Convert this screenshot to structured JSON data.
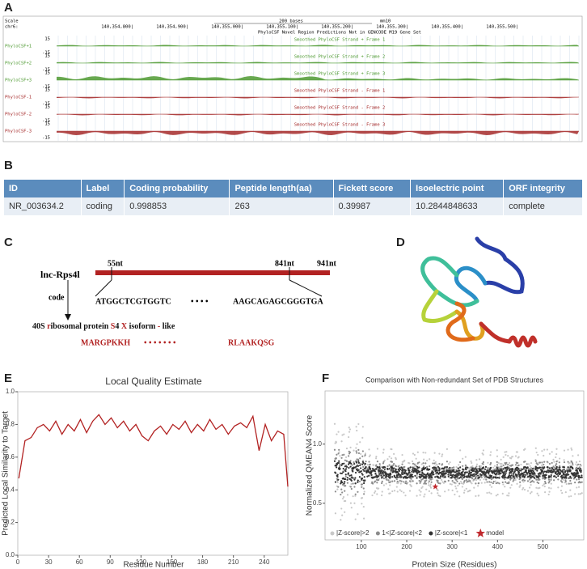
{
  "panel_labels": [
    "A",
    "B",
    "C",
    "D",
    "E",
    "F"
  ],
  "browser": {
    "scale": "Scale",
    "chrom": "chr6:",
    "scale_bar": "200 bases",
    "assembly": "mm10",
    "positions": [
      "140,354,800|",
      "140,354,900|",
      "140,355,000|",
      "140,355,100|",
      "140,355,200|",
      "140,355,300|",
      "140,355,400|",
      "140,355,500|"
    ],
    "region_track": "PhyloCSF Novel Region Predictions Not in GENCODE M19 Gene Set",
    "tracks": [
      {
        "name": "PhyloCSF+1",
        "title": "Smoothed PhyloCSF Strand + Frame 1",
        "top": "15",
        "bottom": "-15"
      },
      {
        "name": "PhyloCSF+2",
        "title": "Smoothed PhyloCSF Strand + Frame 2",
        "top": "15",
        "bottom": "-15"
      },
      {
        "name": "PhyloCSF+3",
        "title": "Smoothed PhyloCSF Strand + Frame 3",
        "top": "15",
        "bottom": "-15"
      },
      {
        "name": "PhyloCSF-1",
        "title": "Smoothed PhyloCSF Strand - Frame 1",
        "top": "15",
        "bottom": "-15"
      },
      {
        "name": "PhyloCSF-2",
        "title": "Smoothed PhyloCSF Strand - Frame 2",
        "top": "15",
        "bottom": "-15"
      },
      {
        "name": "PhyloCSF-3",
        "title": "Smoothed PhyloCSF Strand - Frame 3",
        "top": "15",
        "bottom": "-15"
      }
    ]
  },
  "table": {
    "header": [
      "ID",
      "Label",
      "Coding probability",
      "Peptide length(aa)",
      "Fickett score",
      "Isoelectric point",
      "ORF integrity"
    ],
    "rows": [
      [
        "NR_003634.2",
        "coding",
        "0.998853",
        "263",
        "0.39987",
        "10.2844848633",
        "complete"
      ]
    ]
  },
  "diagram": {
    "gene": "lnc-Rps4l",
    "start": "55nt",
    "stop": "841nt",
    "length": "941nt",
    "arrow_label": "code",
    "seq_start": "ATGGCTCGTGGTC",
    "seq_dots": "• • • •",
    "seq_end": "AAGCAGAGCGGGTGA",
    "protein_name": [
      "40S ",
      "r",
      "ibosomal protein ",
      "S",
      "4 ",
      "X",
      " isoform ",
      "-",
      " like"
    ],
    "peptide_start": "MARGPKKH",
    "peptide_dots": "• • • • • • •",
    "peptide_end": "RLAAKQSG"
  },
  "chart_data": [
    {
      "type": "line",
      "title": "Local Quality Estimate",
      "x_label": "Residue Number",
      "y_label": "Predicted Local Similarity to Target",
      "color": "#b22222",
      "xlim": [
        0,
        263
      ],
      "ylim": [
        0,
        1
      ],
      "xticks": [
        0,
        30,
        60,
        90,
        120,
        150,
        180,
        210,
        240
      ],
      "yticks": [
        {
          "value": 0,
          "label": "0.0"
        },
        0.2,
        0.4,
        0.6,
        0.8,
        {
          "value": 1,
          "label": "1.0"
        }
      ],
      "x": [
        1,
        7,
        13,
        19,
        25,
        31,
        37,
        43,
        49,
        55,
        61,
        67,
        73,
        79,
        85,
        91,
        97,
        103,
        109,
        115,
        121,
        127,
        133,
        139,
        145,
        151,
        157,
        163,
        169,
        175,
        181,
        187,
        193,
        199,
        205,
        211,
        217,
        223,
        229,
        235,
        241,
        247,
        253,
        259,
        263
      ],
      "values": [
        0.47,
        0.7,
        0.72,
        0.78,
        0.8,
        0.76,
        0.82,
        0.74,
        0.8,
        0.76,
        0.83,
        0.75,
        0.82,
        0.86,
        0.8,
        0.84,
        0.78,
        0.82,
        0.76,
        0.8,
        0.73,
        0.7,
        0.76,
        0.79,
        0.74,
        0.8,
        0.77,
        0.82,
        0.75,
        0.8,
        0.76,
        0.83,
        0.77,
        0.8,
        0.74,
        0.79,
        0.81,
        0.78,
        0.85,
        0.64,
        0.8,
        0.7,
        0.76,
        0.74,
        0.42
      ]
    },
    {
      "type": "scatter",
      "title": "Comparison with Non-redundant Set of PDB Structures",
      "x_label": "Protein Size (Residues)",
      "y_label": "Normalized QMEAN4 Score",
      "xlim": [
        20,
        590
      ],
      "ylim": [
        0.19,
        1.45
      ],
      "xticks": [
        100,
        200,
        300,
        400,
        500
      ],
      "yticks": [
        0.5,
        {
          "value": 1,
          "label": "1.0"
        }
      ],
      "background_classes": [
        {
          "name": "|Z-score|>2",
          "color": "#c8c8c8"
        },
        {
          "name": "1<|Z-score|<2",
          "color": "#8c8c8c"
        },
        {
          "name": "|Z-score|<1",
          "color": "#333333"
        }
      ],
      "series": [
        {
          "name": "model",
          "color": "#c0282d",
          "x": [
            263
          ],
          "values": [
            0.64
          ]
        }
      ]
    }
  ]
}
